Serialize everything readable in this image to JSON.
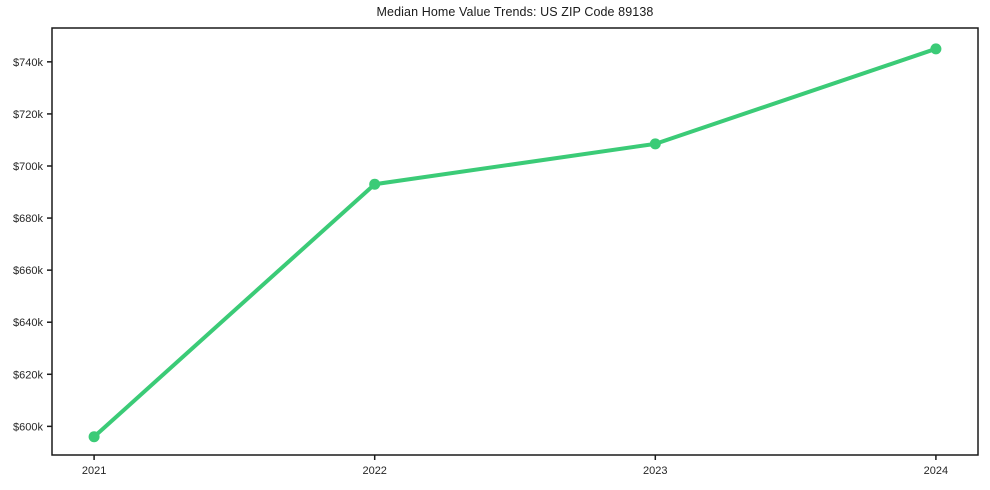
{
  "chart_data": {
    "type": "line",
    "title": "Median Home Value Trends: US ZIP Code 89138",
    "xlabel": "",
    "ylabel": "",
    "categories": [
      "2021",
      "2022",
      "2023",
      "2024"
    ],
    "series": [
      {
        "name": "Median home value",
        "values": [
          596000,
          693000,
          708500,
          745000
        ]
      }
    ],
    "yticks": [
      600000,
      620000,
      640000,
      660000,
      680000,
      700000,
      720000,
      740000
    ],
    "ytick_labels": [
      "$600k",
      "$620k",
      "$640k",
      "$660k",
      "$680k",
      "$700k",
      "$720k",
      "$740k"
    ],
    "xtick_labels": [
      "2021",
      "2022",
      "2023",
      "2024"
    ],
    "ylim": [
      589000,
      753000
    ],
    "x_margin_fraction": 0.05,
    "grid": false,
    "legend": false,
    "line_color": "#3bcb77",
    "marker_color": "#3bcb77",
    "axis_color": "#1a1a1a",
    "text_color": "#262626",
    "background_color": "#ffffff",
    "line_width": 4,
    "marker_radius": 5.5
  }
}
